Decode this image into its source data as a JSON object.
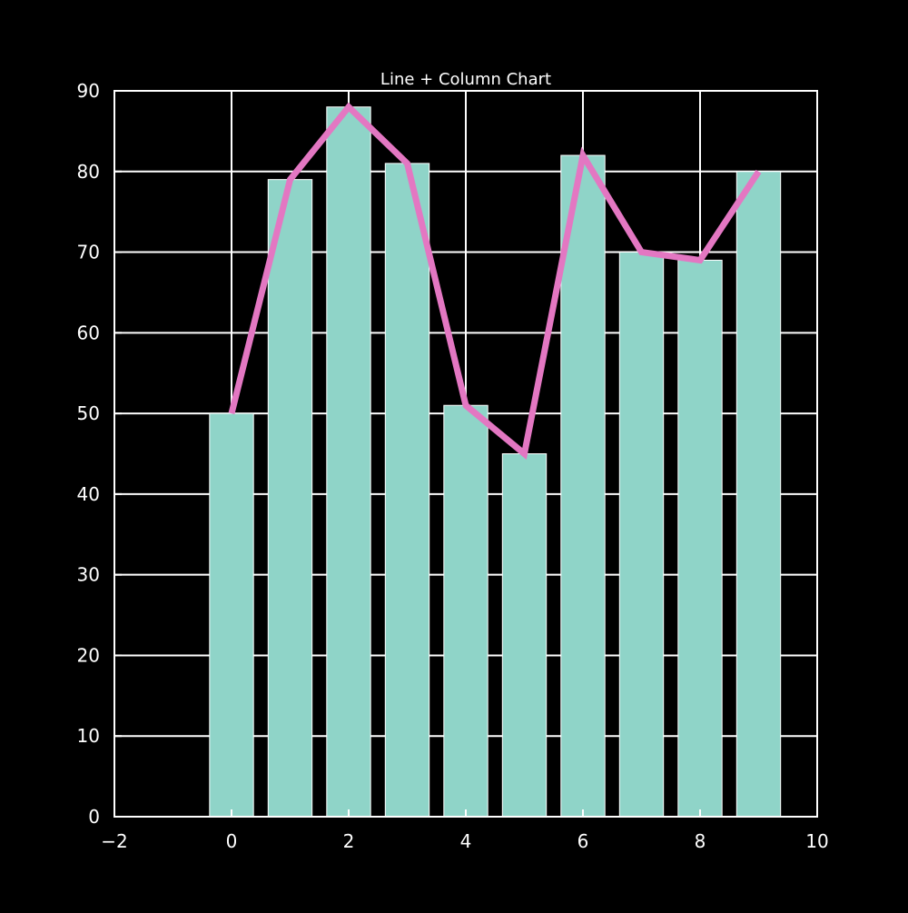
{
  "chart_data": {
    "type": "bar",
    "title": "Line + Column Chart",
    "xlabel": "",
    "ylabel": "",
    "x": [
      0,
      1,
      2,
      3,
      4,
      5,
      6,
      7,
      8,
      9
    ],
    "series": [
      {
        "type": "bar",
        "values": [
          50,
          79,
          88,
          81,
          51,
          45,
          82,
          70,
          69,
          80
        ]
      },
      {
        "type": "line",
        "values": [
          50,
          79,
          88,
          81,
          51,
          45,
          82,
          70,
          69,
          80
        ]
      }
    ],
    "xlim": [
      -2,
      10
    ],
    "ylim": [
      0,
      90
    ],
    "xticks": [
      -2,
      0,
      2,
      4,
      6,
      8,
      10
    ],
    "xtick_labels": [
      "−2",
      "0",
      "2",
      "4",
      "6",
      "8",
      "10"
    ],
    "yticks": [
      0,
      10,
      20,
      30,
      40,
      50,
      60,
      70,
      80,
      90
    ],
    "ytick_labels": [
      "0",
      "10",
      "20",
      "30",
      "40",
      "50",
      "60",
      "70",
      "80",
      "90"
    ],
    "grid": true,
    "bar_width": 0.75,
    "colors": {
      "background": "#000000",
      "axes": "#ffffff",
      "grid": "#ffffff",
      "bar": "#8fd4c8",
      "bar_edge": "#ffffff",
      "line": "#e377c2",
      "text": "#ffffff"
    }
  }
}
